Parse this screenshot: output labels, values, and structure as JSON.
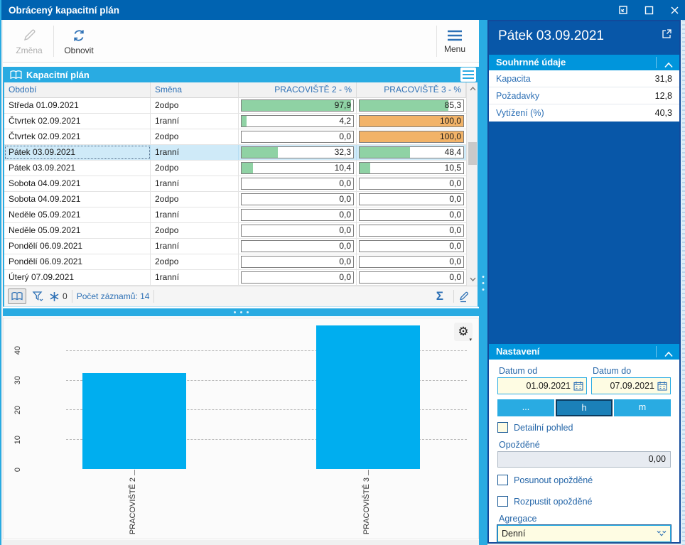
{
  "window": {
    "title": "Obrácený kapacitní plán"
  },
  "toolbar": {
    "change_label": "Změna",
    "refresh_label": "Obnovit",
    "menu_label": "Menu"
  },
  "table": {
    "title": "Kapacitní plán",
    "columns": {
      "period": "Období",
      "shift": "Směna",
      "p2": "PRACOVIŠTĚ 2 - %",
      "p3": "PRACOVIŠTĚ 3 - %"
    },
    "rows": [
      {
        "period": "Středa 01.09.2021",
        "shift": "2odpo",
        "p2": "97,9",
        "p3": "85,3",
        "selected": false
      },
      {
        "period": "Čtvrtek 02.09.2021",
        "shift": "1ranní",
        "p2": "4,2",
        "p3": "100,0",
        "selected": false
      },
      {
        "period": "Čtvrtek 02.09.2021",
        "shift": "2odpo",
        "p2": "0,0",
        "p3": "100,0",
        "selected": false
      },
      {
        "period": "Pátek 03.09.2021",
        "shift": "1ranní",
        "p2": "32,3",
        "p3": "48,4",
        "selected": true
      },
      {
        "period": "Pátek 03.09.2021",
        "shift": "2odpo",
        "p2": "10,4",
        "p3": "10,5",
        "selected": false
      },
      {
        "period": "Sobota 04.09.2021",
        "shift": "1ranní",
        "p2": "0,0",
        "p3": "0,0",
        "selected": false
      },
      {
        "period": "Sobota 04.09.2021",
        "shift": "2odpo",
        "p2": "0,0",
        "p3": "0,0",
        "selected": false
      },
      {
        "period": "Neděle 05.09.2021",
        "shift": "1ranní",
        "p2": "0,0",
        "p3": "0,0",
        "selected": false
      },
      {
        "period": "Neděle 05.09.2021",
        "shift": "2odpo",
        "p2": "0,0",
        "p3": "0,0",
        "selected": false
      },
      {
        "period": "Pondělí 06.09.2021",
        "shift": "1ranní",
        "p2": "0,0",
        "p3": "0,0",
        "selected": false
      },
      {
        "period": "Pondělí 06.09.2021",
        "shift": "2odpo",
        "p2": "0,0",
        "p3": "0,0",
        "selected": false
      },
      {
        "period": "Úterý 07.09.2021",
        "shift": "1ranní",
        "p2": "0,0",
        "p3": "0,0",
        "selected": false
      }
    ],
    "status": {
      "filter_count": "0",
      "records_label": "Počet záznamů: 14"
    }
  },
  "chart_data": {
    "type": "bar",
    "categories": [
      "PRACOVIŠTĚ 2",
      "PRACOVIŠTĚ 3"
    ],
    "values": [
      32.3,
      48.4
    ],
    "title": "",
    "xlabel": "",
    "ylabel": "",
    "ylim": [
      0,
      50
    ],
    "yticks": [
      0,
      10,
      20,
      30,
      40
    ],
    "grid": "dashed horizontal",
    "legend": "none",
    "bar_color": "#00AEEF"
  },
  "right_panel": {
    "title": "Pátek 03.09.2021",
    "summary": {
      "header": "Souhrnné údaje",
      "rows": [
        {
          "label": "Kapacita",
          "value": "31,8"
        },
        {
          "label": "Požadavky",
          "value": "12,8"
        },
        {
          "label": "Vytížení (%)",
          "value": "40,3"
        }
      ]
    },
    "settings": {
      "header": "Nastavení",
      "date_from_label": "Datum od",
      "date_to_label": "Datum do",
      "date_from_value": "01.09.2021",
      "date_to_value": "07.09.2021",
      "range_buttons": [
        "...",
        "h",
        "m"
      ],
      "active_button": "h",
      "detail_checkbox_label": "Detailní pohled",
      "delayed_label": "Opožděné",
      "delayed_value": "0,00",
      "shift_delayed_label": "Posunout opožděné",
      "dissolve_delayed_label": "Rozpustit opožděné",
      "aggregation_label": "Agregace",
      "aggregation_value": "Denní"
    }
  },
  "colors": {
    "titlebar": "#0063B1",
    "accent_cyan": "#29ABE2",
    "panel_bg": "#0857A8",
    "section_header_bg": "#0095DC",
    "green_fill": "#8FD2A4",
    "orange_fill": "#F2B368",
    "bar_cyan": "#00AEEF",
    "selected_row_bg": "#CFEAF8",
    "input_cream": "#FEFCE3"
  }
}
